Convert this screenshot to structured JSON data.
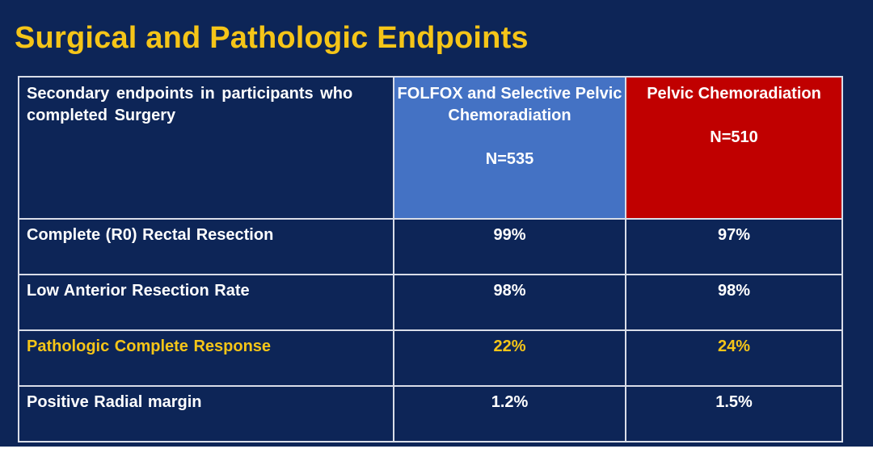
{
  "slide": {
    "title": "Surgical and Pathologic Endpoints"
  },
  "table": {
    "header": {
      "label": "Secondary endpoints in participants who completed Surgery",
      "arms": [
        {
          "name": "FOLFOX and Selective Pelvic Chemoradiation",
          "n": "N=535",
          "color": "#4472c4"
        },
        {
          "name": "Pelvic Chemoradiation",
          "n": "N=510",
          "color": "#c00000"
        }
      ]
    },
    "rows": [
      {
        "label": "Complete (R0) Rectal Resection",
        "values": [
          "99%",
          "97%"
        ],
        "highlight": false
      },
      {
        "label": "Low Anterior Resection Rate",
        "values": [
          "98%",
          "98%"
        ],
        "highlight": false
      },
      {
        "label": "Pathologic Complete Response",
        "values": [
          "22%",
          "24%"
        ],
        "highlight": true
      },
      {
        "label": "Positive Radial margin",
        "values": [
          "1.2%",
          "1.5%"
        ],
        "highlight": false
      }
    ]
  },
  "colors": {
    "background": "#0d2557",
    "title": "#f5c518",
    "highlight_text": "#f5c518",
    "text": "#ffffff",
    "border": "#d9dde8"
  }
}
